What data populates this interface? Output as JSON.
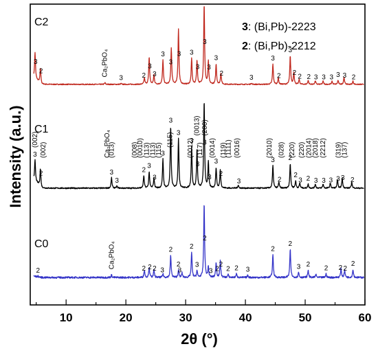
{
  "chart_data": {
    "type": "line",
    "xlabel": "2θ (°)",
    "ylabel": "Intensity (a.u.)",
    "xlim": [
      4,
      60
    ],
    "xticks": [
      "10",
      "20",
      "30",
      "40",
      "50",
      "60"
    ],
    "legend": [
      {
        "key": "3",
        "text": ": (Bi,Pb)-2223"
      },
      {
        "key": "2",
        "text": ": (Bi,Pb)-2212"
      }
    ],
    "legend_position": "top-right",
    "series": [
      {
        "name": "C2",
        "color": "#c0281e",
        "baseline": 0.035,
        "noise": 0.006,
        "width": 0.09,
        "peaks": [
          [
            4.8,
            0.32
          ],
          [
            5.7,
            0.18
          ],
          [
            16.5,
            0.02
          ],
          [
            19.2,
            0.01
          ],
          [
            23.1,
            0.08
          ],
          [
            23.9,
            0.34
          ],
          [
            24.7,
            0.12
          ],
          [
            26.2,
            0.3
          ],
          [
            27.6,
            0.45
          ],
          [
            28.8,
            0.68
          ],
          [
            31.0,
            0.32
          ],
          [
            31.9,
            0.3
          ],
          [
            33.1,
            1.0
          ],
          [
            33.8,
            0.28
          ],
          [
            35.1,
            0.25
          ],
          [
            35.9,
            0.14
          ],
          [
            41.0,
            0.015
          ],
          [
            44.6,
            0.25
          ],
          [
            45.5,
            0.08
          ],
          [
            47.5,
            0.35
          ],
          [
            48.1,
            0.15
          ],
          [
            49.0,
            0.06
          ],
          [
            50.5,
            0.05
          ],
          [
            51.7,
            0.045
          ],
          [
            53.0,
            0.04
          ],
          [
            54.5,
            0.04
          ],
          [
            55.5,
            0.05
          ],
          [
            56.5,
            0.09
          ],
          [
            58.0,
            0.04
          ]
        ],
        "labels": [
          [
            4.9,
            "3"
          ],
          [
            5.8,
            "2"
          ],
          [
            23.0,
            "2"
          ],
          [
            24.0,
            "3"
          ],
          [
            24.8,
            "3"
          ],
          [
            26.2,
            "3"
          ],
          [
            27.5,
            "3"
          ],
          [
            28.9,
            "3"
          ],
          [
            31.0,
            "3"
          ],
          [
            32.0,
            "3"
          ],
          [
            33.2,
            "3"
          ],
          [
            33.9,
            "3"
          ],
          [
            35.1,
            "3"
          ],
          [
            36.0,
            "2"
          ],
          [
            41.0,
            "3"
          ],
          [
            44.6,
            "3"
          ],
          [
            45.6,
            "2"
          ],
          [
            47.5,
            "3"
          ],
          [
            48.2,
            "2"
          ],
          [
            49.1,
            "2"
          ],
          [
            50.6,
            "2"
          ],
          [
            51.8,
            "3"
          ],
          [
            53.1,
            "3"
          ],
          [
            54.4,
            "3"
          ],
          [
            55.5,
            "3"
          ],
          [
            56.6,
            "3"
          ],
          [
            58.1,
            "2"
          ],
          [
            19.2,
            "3"
          ]
        ],
        "special_labels": [
          [
            16.5,
            "Ca₂PbO₄"
          ]
        ]
      },
      {
        "name": "C1",
        "color": "#000000",
        "baseline": 0.04,
        "noise": 0.006,
        "width": 0.09,
        "peaks": [
          [
            4.8,
            0.2
          ],
          [
            5.7,
            0.17
          ],
          [
            17.6,
            0.1
          ],
          [
            18.5,
            0.02
          ],
          [
            23.0,
            0.12
          ],
          [
            23.9,
            0.16
          ],
          [
            24.7,
            0.1
          ],
          [
            26.2,
            0.28
          ],
          [
            27.5,
            0.6
          ],
          [
            28.8,
            0.48
          ],
          [
            31.0,
            0.4
          ],
          [
            31.9,
            0.38
          ],
          [
            33.1,
            0.85
          ],
          [
            33.8,
            0.25
          ],
          [
            35.1,
            0.2
          ],
          [
            35.8,
            0.18
          ],
          [
            38.8,
            0.03
          ],
          [
            44.6,
            0.22
          ],
          [
            45.6,
            0.06
          ],
          [
            47.5,
            0.24
          ],
          [
            48.4,
            0.07
          ],
          [
            49.1,
            0.05
          ],
          [
            50.5,
            0.04
          ],
          [
            51.7,
            0.04
          ],
          [
            53.0,
            0.04
          ],
          [
            54.2,
            0.05
          ],
          [
            55.4,
            0.08
          ],
          [
            56.2,
            0.1
          ],
          [
            57.8,
            0.06
          ]
        ],
        "labels": [
          [
            4.8,
            "3"
          ],
          [
            5.8,
            "2"
          ],
          [
            17.6,
            "3"
          ],
          [
            18.5,
            "3"
          ],
          [
            23.0,
            "2"
          ],
          [
            23.9,
            "3"
          ],
          [
            24.8,
            "3"
          ],
          [
            26.2,
            "3"
          ],
          [
            27.5,
            "3"
          ],
          [
            28.8,
            "3"
          ],
          [
            31.0,
            "3"
          ],
          [
            32.0,
            "3"
          ],
          [
            33.2,
            "3"
          ],
          [
            34.0,
            "3"
          ],
          [
            35.1,
            "3"
          ],
          [
            35.9,
            "2"
          ],
          [
            38.9,
            "3"
          ],
          [
            44.6,
            "3"
          ],
          [
            45.7,
            "2"
          ],
          [
            47.5,
            "2"
          ],
          [
            48.4,
            "2"
          ],
          [
            49.2,
            "3"
          ],
          [
            50.5,
            "2"
          ],
          [
            51.8,
            "3"
          ],
          [
            53.1,
            "3"
          ],
          [
            54.3,
            "3"
          ],
          [
            55.5,
            "3"
          ],
          [
            56.3,
            "3"
          ],
          [
            57.9,
            "2"
          ]
        ],
        "miller": [
          [
            4.8,
            "(002)"
          ],
          [
            6.2,
            "(002)"
          ],
          [
            17.6,
            "(013)"
          ],
          [
            16.9,
            "Ca₂PbO₄"
          ],
          [
            21.5,
            "(008)"
          ],
          [
            22.4,
            "(0010)"
          ],
          [
            23.5,
            "(113)"
          ],
          [
            24.5,
            "(113)"
          ],
          [
            25.5,
            "(115)"
          ],
          [
            27.4,
            "(115)"
          ],
          [
            30.8,
            "(0012)"
          ],
          [
            31.9,
            "(0013)"
          ],
          [
            32.4,
            "(117)"
          ],
          [
            33.2,
            "(200)"
          ],
          [
            34.5,
            "(0014)"
          ],
          [
            36.3,
            "(119)"
          ],
          [
            37.2,
            "(1111)"
          ],
          [
            38.6,
            "(0016)"
          ],
          [
            44.0,
            "(2010)"
          ],
          [
            46.0,
            "(028)"
          ],
          [
            47.8,
            "(220)"
          ],
          [
            49.4,
            "(220)"
          ],
          [
            50.6,
            "(2014)"
          ],
          [
            51.7,
            "(2018)"
          ],
          [
            53.0,
            "(2212)"
          ],
          [
            55.6,
            "(319)"
          ],
          [
            56.6,
            "(137)"
          ]
        ]
      },
      {
        "name": "C0",
        "color": "#3535c8",
        "baseline": 0.055,
        "noise": 0.012,
        "width": 0.09,
        "peaks": [
          [
            5.3,
            0.01
          ],
          [
            17.6,
            0.035
          ],
          [
            23.1,
            0.1
          ],
          [
            23.9,
            0.14
          ],
          [
            24.7,
            0.1
          ],
          [
            26.2,
            0.05
          ],
          [
            27.5,
            0.3
          ],
          [
            28.8,
            0.1
          ],
          [
            29.4,
            0.06
          ],
          [
            31.0,
            0.34
          ],
          [
            31.9,
            0.09
          ],
          [
            33.1,
            1.0
          ],
          [
            33.8,
            0.14
          ],
          [
            35.1,
            0.2
          ],
          [
            35.8,
            0.22
          ],
          [
            37.1,
            0.04
          ],
          [
            38.5,
            0.05
          ],
          [
            40.4,
            0.03
          ],
          [
            44.6,
            0.31
          ],
          [
            47.5,
            0.38
          ],
          [
            48.9,
            0.07
          ],
          [
            50.5,
            0.1
          ],
          [
            51.8,
            0.04
          ],
          [
            53.5,
            0.05
          ],
          [
            56.0,
            0.12
          ],
          [
            56.6,
            0.1
          ],
          [
            58.0,
            0.11
          ]
        ],
        "labels": [
          [
            5.3,
            "2"
          ],
          [
            23.0,
            "2"
          ],
          [
            24.0,
            "2"
          ],
          [
            24.8,
            "2"
          ],
          [
            26.1,
            "3"
          ],
          [
            27.5,
            "2"
          ],
          [
            28.8,
            "2"
          ],
          [
            29.0,
            "3"
          ],
          [
            31.0,
            "2"
          ],
          [
            31.9,
            "3"
          ],
          [
            33.2,
            "2"
          ],
          [
            34.2,
            "3"
          ],
          [
            35.3,
            "2"
          ],
          [
            35.9,
            "2"
          ],
          [
            37.1,
            "2"
          ],
          [
            38.5,
            "2"
          ],
          [
            40.4,
            "3"
          ],
          [
            44.6,
            "2"
          ],
          [
            47.5,
            "2"
          ],
          [
            48.9,
            "3"
          ],
          [
            50.5,
            "2"
          ],
          [
            53.5,
            "2"
          ],
          [
            55.9,
            "2"
          ],
          [
            56.7,
            "2"
          ],
          [
            58.0,
            "2"
          ]
        ],
        "special_labels": [
          [
            17.6,
            "Ca₂PbO₄"
          ]
        ]
      }
    ]
  }
}
